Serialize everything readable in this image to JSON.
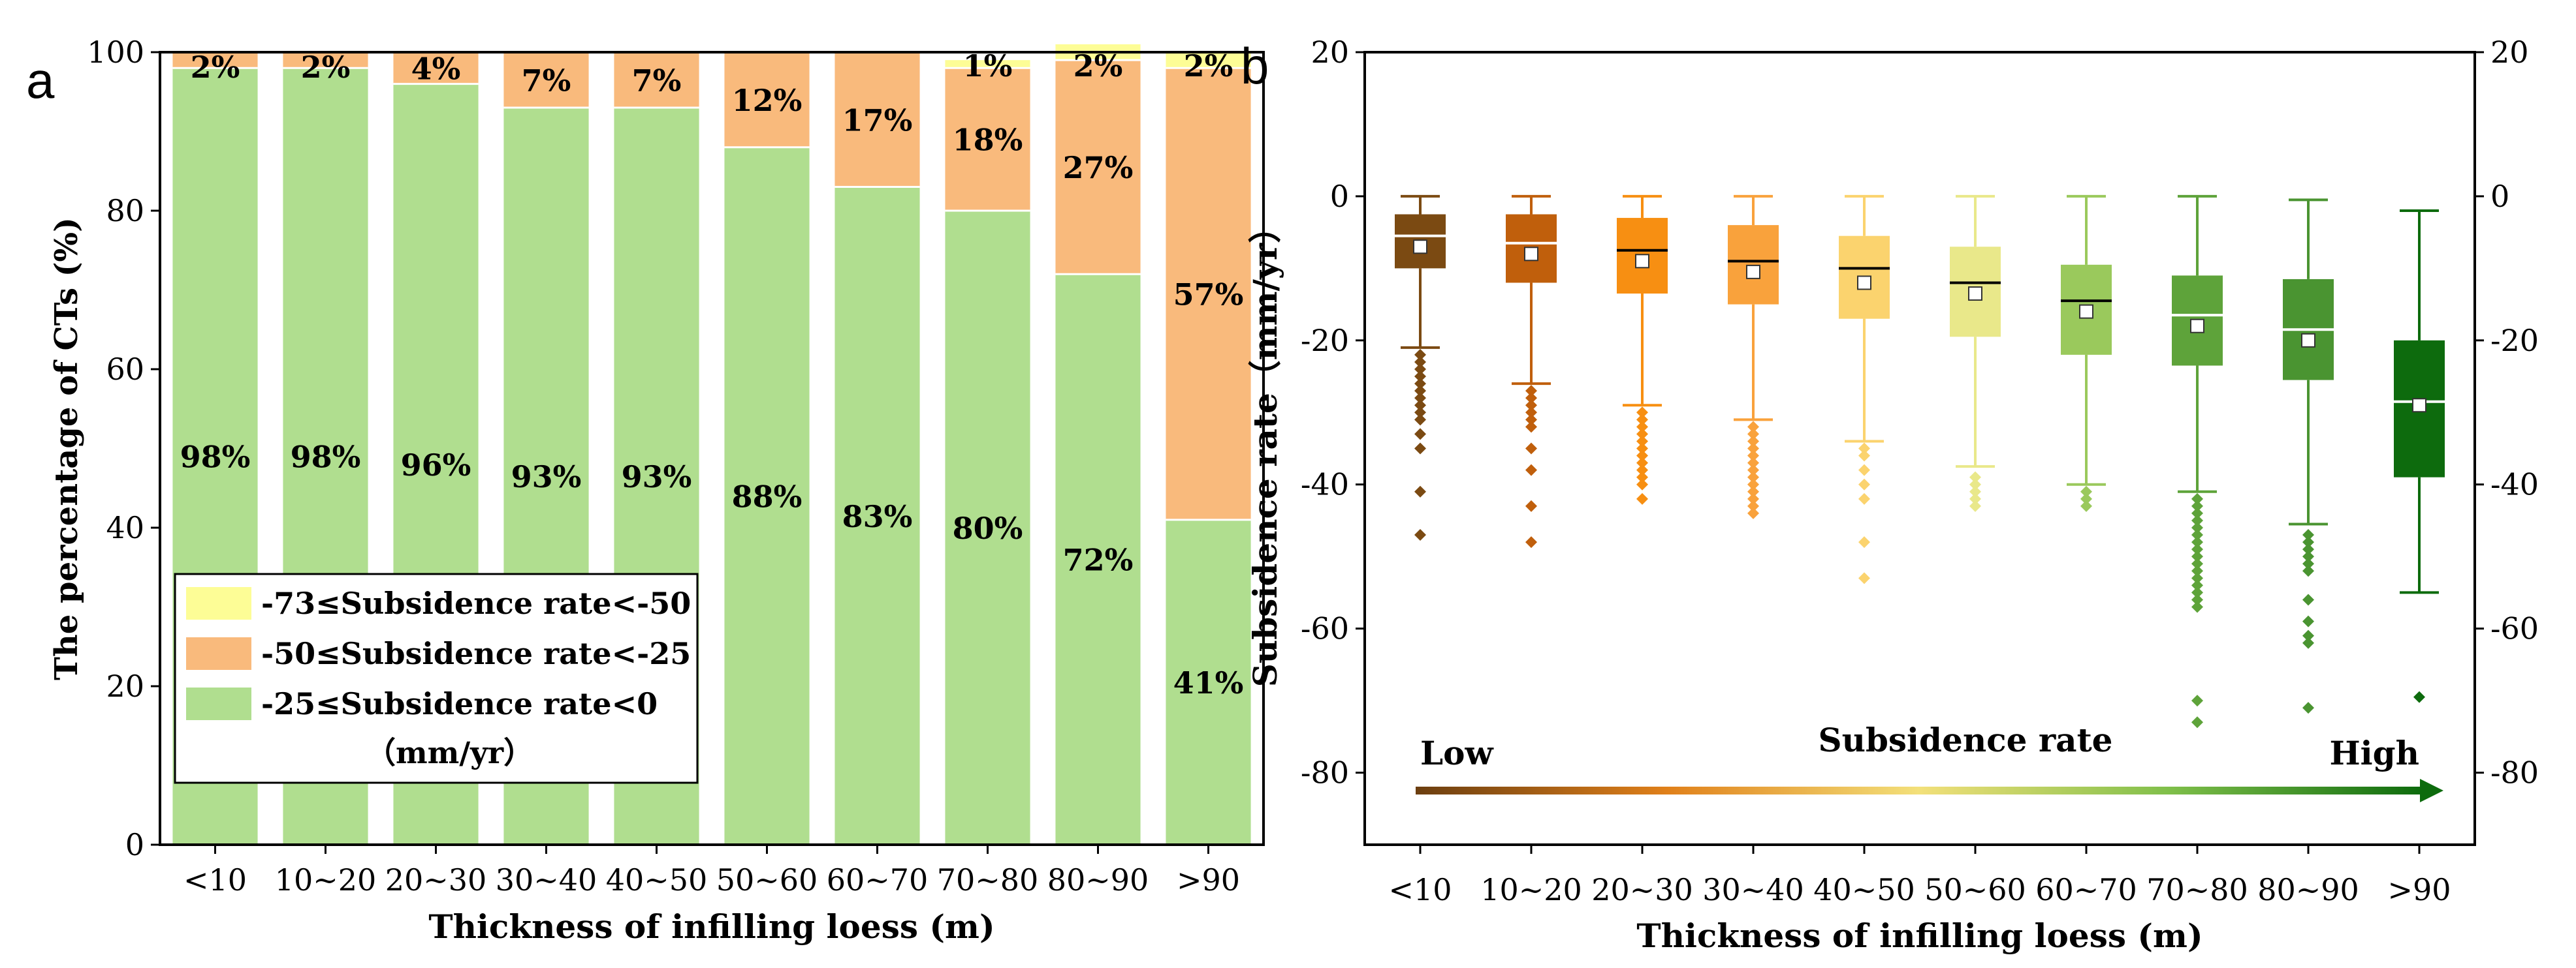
{
  "chart_data": [
    {
      "type": "bar",
      "stacked": true,
      "panel_label": "a",
      "title": "",
      "xlabel": "Thickness of infilling loess (m)",
      "ylabel": "The percentage of CTs (%)",
      "ylim": [
        0,
        100
      ],
      "yticks": [
        "0",
        "20",
        "40",
        "60",
        "80",
        "100"
      ],
      "categories": [
        "<10",
        "10~20",
        "20~30",
        "30~40",
        "40~50",
        "50~60",
        "60~70",
        "70~80",
        "80~90",
        ">90"
      ],
      "series": [
        {
          "name": "-25≤Subsidence rate<0",
          "color": "#b0de8f",
          "values": [
            98,
            98,
            96,
            93,
            93,
            88,
            83,
            80,
            72,
            41
          ],
          "labels": [
            "98%",
            "98%",
            "96%",
            "93%",
            "93%",
            "88%",
            "83%",
            "80%",
            "72%",
            "41%"
          ]
        },
        {
          "name": "-50≤Subsidence rate<-25",
          "color": "#f9ba7c",
          "values": [
            2,
            2,
            4,
            7,
            7,
            12,
            17,
            18,
            27,
            57
          ],
          "labels": [
            "2%",
            "2%",
            "4%",
            "7%",
            "7%",
            "12%",
            "17%",
            "18%",
            "27%",
            "57%"
          ]
        },
        {
          "name": "-73≤Subsidence rate<-50",
          "color": "#fdfd96",
          "values": [
            0,
            0,
            0,
            0,
            0,
            0,
            0,
            1,
            2,
            2
          ],
          "labels": [
            "",
            "",
            "",
            "",
            "",
            "",
            "",
            "1%",
            "2%",
            "2%"
          ]
        }
      ],
      "legend": {
        "position": "bottom-left",
        "entries": [
          "-73≤Subsidence rate<-50",
          "-50≤Subsidence rate<-25",
          "-25≤Subsidence rate<0"
        ],
        "unit": "（mm/yr）"
      }
    },
    {
      "type": "box",
      "panel_label": "b",
      "xlabel": "Thickness of infilling loess (m)",
      "ylabel": "Subsidence rate（mm/yr）",
      "ylim": [
        -90,
        20
      ],
      "yticks": [
        "-80",
        "-60",
        "-40",
        "-20",
        "0",
        "20"
      ],
      "categories": [
        "<10",
        "10~20",
        "20~30",
        "30~40",
        "40~50",
        "50~60",
        "60~70",
        "70~80",
        "80~90",
        ">90"
      ],
      "boxes": [
        {
          "color": "#7b4a12",
          "whisker_low": -21,
          "q1": -10,
          "median": -5.5,
          "q3": -2.5,
          "whisker_high": 0,
          "mean": -7,
          "outliers": [
            -22,
            -23,
            -24,
            -25,
            -26,
            -27,
            -28,
            -29,
            -30,
            -31,
            -33,
            -35,
            -41,
            -47
          ],
          "median_line": "#ffffff"
        },
        {
          "color": "#c05f0c",
          "whisker_low": -26,
          "q1": -12,
          "median": -6.5,
          "q3": -2.5,
          "whisker_high": 0,
          "mean": -8,
          "outliers": [
            -27,
            -28,
            -29,
            -30,
            -31,
            -32,
            -35,
            -38,
            -43,
            -48
          ],
          "median_line": "#ffffff"
        },
        {
          "color": "#f78f12",
          "whisker_low": -29,
          "q1": -13.5,
          "median": -7.5,
          "q3": -3,
          "whisker_high": 0,
          "mean": -9,
          "outliers": [
            -30,
            -31,
            -32,
            -33,
            -34,
            -35,
            -36,
            -37,
            -38,
            -39,
            -40,
            -42
          ],
          "median_line": "#000000"
        },
        {
          "color": "#f9a23c",
          "whisker_low": -31,
          "q1": -15,
          "median": -9,
          "q3": -4,
          "whisker_high": 0,
          "mean": -10.5,
          "outliers": [
            -32,
            -33,
            -34,
            -35,
            -36,
            -37,
            -38,
            -39,
            -40,
            -41,
            -42,
            -43,
            -44
          ],
          "median_line": "#000000"
        },
        {
          "color": "#fbd36e",
          "whisker_low": -34,
          "q1": -17,
          "median": -10,
          "q3": -5.5,
          "whisker_high": 0,
          "mean": -12,
          "outliers": [
            -35,
            -36,
            -38,
            -40,
            -42,
            -48,
            -53
          ],
          "median_line": "#000000"
        },
        {
          "color": "#e9e88a",
          "whisker_low": -37.5,
          "q1": -19.5,
          "median": -12,
          "q3": -7,
          "whisker_high": 0,
          "mean": -13.5,
          "outliers": [
            -39,
            -40,
            -41,
            -42,
            -43
          ],
          "median_line": "#000000"
        },
        {
          "color": "#9ac95c",
          "whisker_low": -40,
          "q1": -22,
          "median": -14.5,
          "q3": -9.5,
          "whisker_high": 0,
          "mean": -16,
          "outliers": [
            -41,
            -42,
            -43
          ],
          "median_line": "#000000"
        },
        {
          "color": "#5ea33a",
          "whisker_low": -41,
          "q1": -23.5,
          "median": -16.5,
          "q3": -11,
          "whisker_high": 0,
          "mean": -18,
          "outliers": [
            -42,
            -43,
            -44,
            -45,
            -46,
            -47,
            -48,
            -49,
            -50,
            -51,
            -52,
            -53,
            -54,
            -55,
            -56,
            -57,
            -70,
            -73
          ],
          "median_line": "#ffffff"
        },
        {
          "color": "#4a9431",
          "whisker_low": -45.5,
          "q1": -25.5,
          "median": -18.5,
          "q3": -11.5,
          "whisker_high": -0.5,
          "mean": -20,
          "outliers": [
            -47,
            -48,
            -49,
            -50,
            -51,
            -52,
            -56,
            -59,
            -61,
            -62,
            -71
          ],
          "median_line": "#ffffff"
        },
        {
          "color": "#0d6b0d",
          "whisker_low": -55,
          "q1": -39,
          "median": -28.5,
          "q3": -20,
          "whisker_high": -2,
          "mean": -29,
          "outliers": [
            -69.5
          ],
          "median_line": "#ffffff"
        }
      ],
      "annotations": {
        "left": "Low",
        "center": "Subsidence rate",
        "right": "High"
      }
    }
  ]
}
